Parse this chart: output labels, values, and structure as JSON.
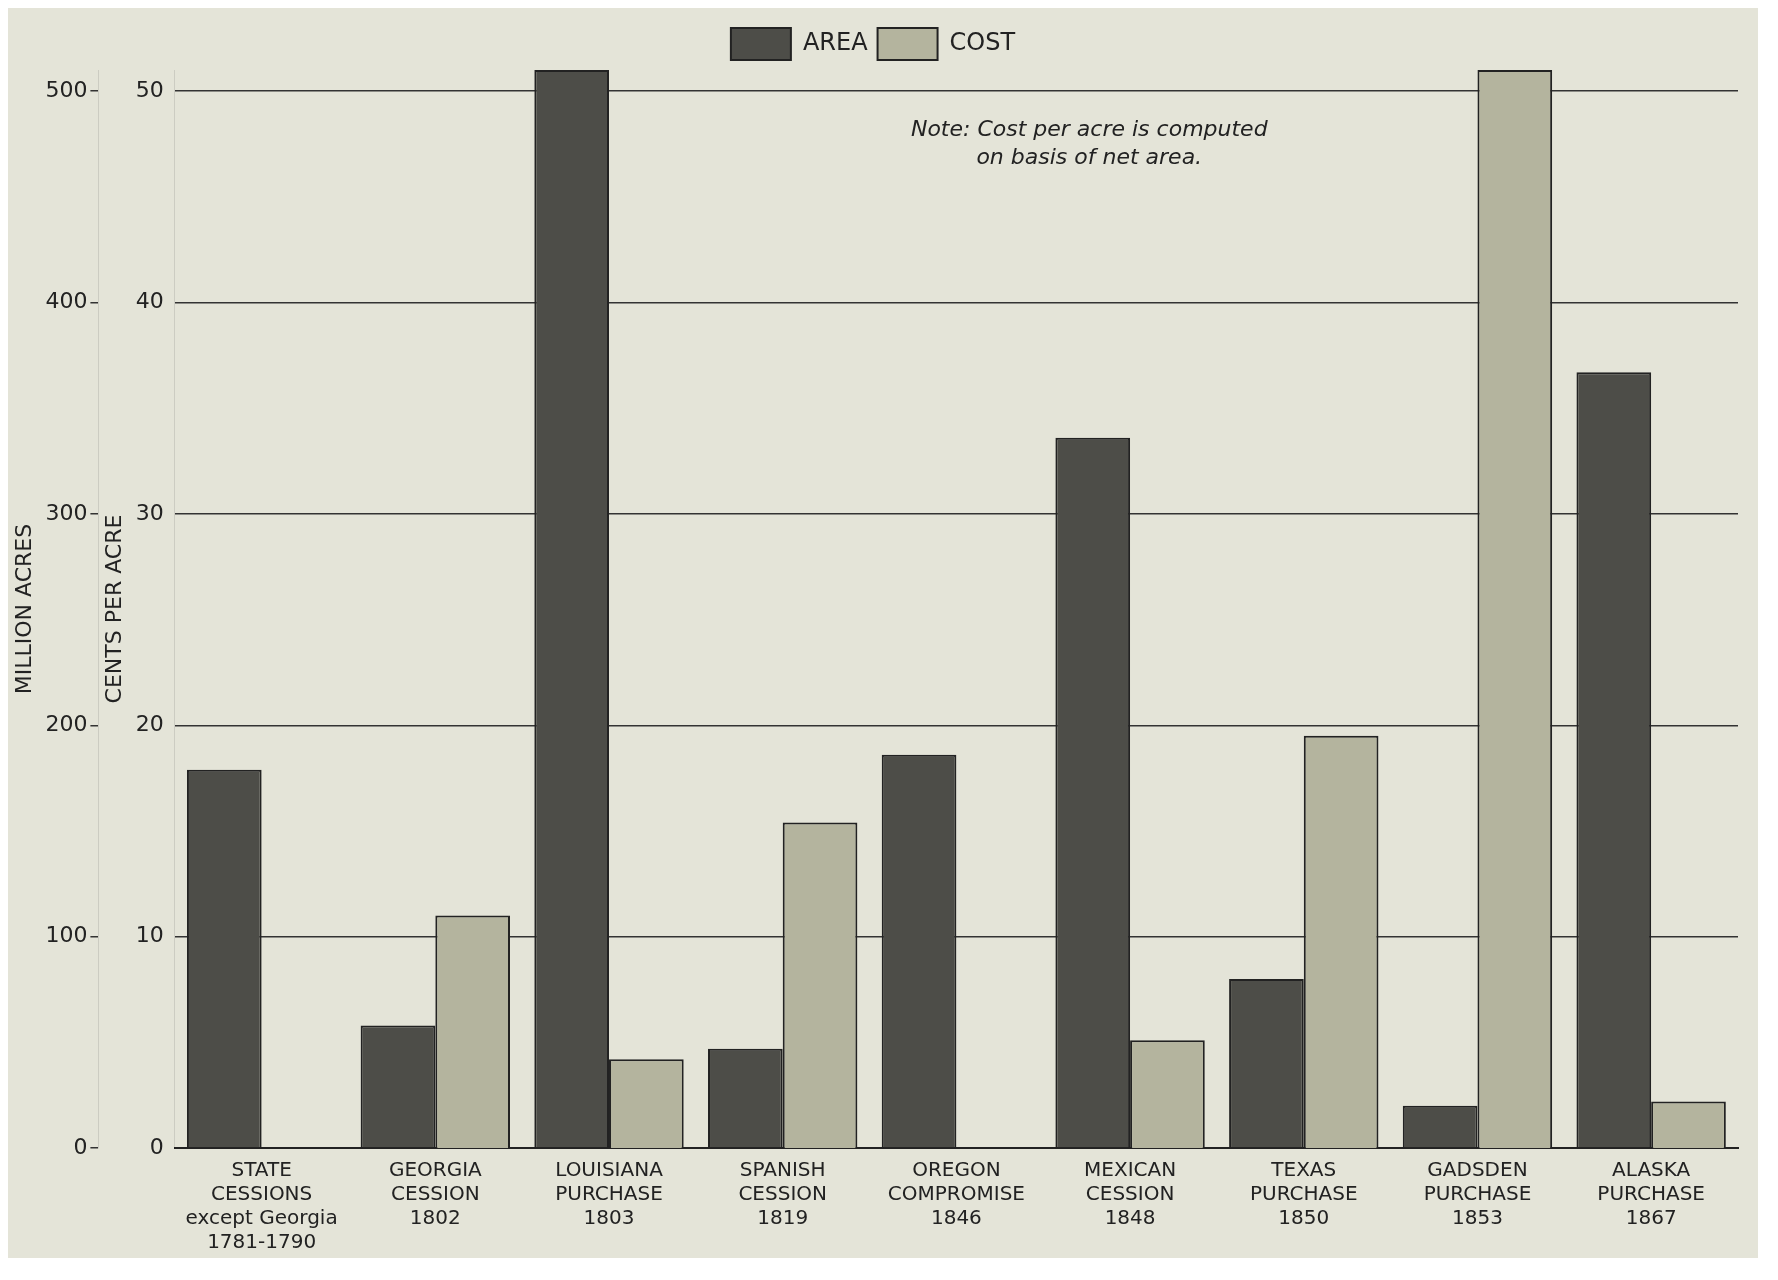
{
  "chart_data": {
    "type": "bar",
    "categories": [
      "STATE\nCESSIONS\nexcept Georgia\n1781-1790",
      "GEORGIA\nCESSION\n1802",
      "LOUISIANA\nPURCHASE\n1803",
      "SPANISH\nCESSION\n1819",
      "OREGON\nCOMPROMISE\n1846",
      "MEXICAN\nCESSION\n1848",
      "TEXAS\nPURCHASE\n1850",
      "GADSDEN\nPURCHASE\n1853",
      "ALASKA\nPURCHASE\n1867"
    ],
    "series": [
      {
        "name": "AREA",
        "color": "#4d4d48",
        "values": [
          179,
          58,
          510,
          47,
          186,
          336,
          80,
          20,
          367
        ]
      },
      {
        "name": "COST",
        "color": "#b4b49e",
        "axis": "y2",
        "values": [
          null,
          11.0,
          4.2,
          15.4,
          null,
          5.1,
          19.5,
          51,
          2.2
        ]
      }
    ],
    "ylabel": "MILLION ACRES",
    "y2label": "CENTS PER ACRE",
    "ylim": [
      0,
      510
    ],
    "yticks": [
      0,
      100,
      200,
      300,
      400,
      500
    ],
    "y2lim": [
      0,
      51
    ],
    "y2ticks": [
      0,
      10,
      20,
      30,
      40,
      50
    ],
    "grid": "y",
    "legend": "top",
    "annotations": [
      "Note: Cost per acre is computed\non basis of net area."
    ]
  }
}
